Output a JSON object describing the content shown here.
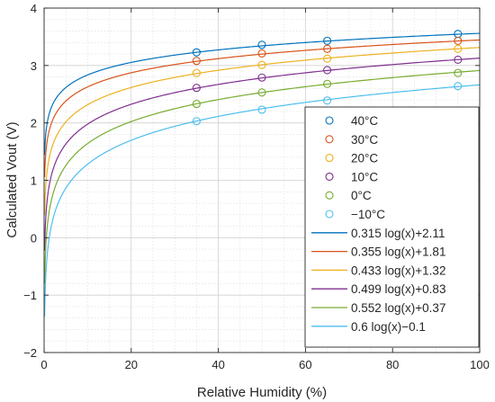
{
  "chart_data": {
    "type": "line",
    "title": "",
    "xlabel": "Relative Humidity (%)",
    "ylabel": "Calculated Vout (V)",
    "xlim": [
      0,
      100
    ],
    "ylim": [
      -2,
      4
    ],
    "x_ticks": [
      0,
      20,
      40,
      60,
      80,
      100
    ],
    "y_ticks": [
      -2,
      -1,
      0,
      1,
      2,
      3,
      4
    ],
    "grid": "major and minor, dashed",
    "legend_position": "bottom-right",
    "measured": [
      {
        "name": "40°C",
        "color": "#0072BD",
        "x": [
          35,
          50,
          65,
          95
        ],
        "y": [
          3.23,
          3.36,
          3.43,
          3.55
        ]
      },
      {
        "name": "30°C",
        "color": "#D95319",
        "x": [
          35,
          50,
          65,
          95
        ],
        "y": [
          3.08,
          3.21,
          3.29,
          3.43
        ]
      },
      {
        "name": "20°C",
        "color": "#EDB120",
        "x": [
          35,
          50,
          65,
          95
        ],
        "y": [
          2.87,
          3.01,
          3.12,
          3.29
        ]
      },
      {
        "name": "10°C",
        "color": "#7E2F8E",
        "x": [
          35,
          50,
          65,
          95
        ],
        "y": [
          2.61,
          2.79,
          2.92,
          3.1
        ]
      },
      {
        "name": "0°C",
        "color": "#77AC30",
        "x": [
          35,
          50,
          65,
          95
        ],
        "y": [
          2.33,
          2.53,
          2.68,
          2.87
        ]
      },
      {
        "name": "−10°C",
        "color": "#4DBEEE",
        "x": [
          35,
          50,
          65,
          95
        ],
        "y": [
          2.03,
          2.23,
          2.39,
          2.64
        ]
      }
    ],
    "fits": [
      {
        "name": "0.315 log(x)+2.11",
        "color": "#0072BD",
        "a": 0.315,
        "b": 2.11
      },
      {
        "name": "0.355 log(x)+1.81",
        "color": "#D95319",
        "a": 0.355,
        "b": 1.81
      },
      {
        "name": "0.433 log(x)+1.32",
        "color": "#EDB120",
        "a": 0.433,
        "b": 1.32
      },
      {
        "name": "0.499 log(x)+0.83",
        "color": "#7E2F8E",
        "a": 0.499,
        "b": 0.83
      },
      {
        "name": "0.552 log(x)+0.37",
        "color": "#77AC30",
        "a": 0.552,
        "b": 0.37
      },
      {
        "name": "0.6 log(x)−0.1",
        "color": "#4DBEEE",
        "a": 0.6,
        "b": -0.1
      }
    ]
  }
}
